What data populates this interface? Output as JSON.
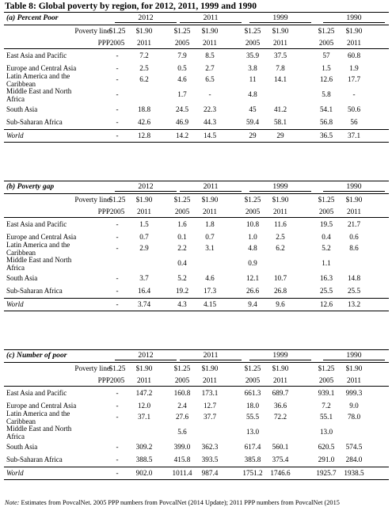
{
  "title": "Table 8: Global poverty by region, for 2012, 2011, 1999 and 1990",
  "years": [
    "2012",
    "2011",
    "1999",
    "1990"
  ],
  "poverty_line_label": "Poverty line",
  "ppp_label": "PPP",
  "poverty_lines": [
    "$1.25",
    "$1.90",
    "$1.25",
    "$1.90",
    "$1.25",
    "$1.90",
    "$1.25",
    "$1.90"
  ],
  "ppp_years": [
    "2005",
    "2011",
    "2005",
    "2011",
    "2005",
    "2011",
    "2005",
    "2011"
  ],
  "sections": [
    {
      "label": "(a) Percent Poor",
      "rows": [
        {
          "name": [
            "East Asia and Pacific"
          ],
          "values": [
            "-",
            "7.2",
            "7.9",
            "8.5",
            "35.9",
            "37.5",
            "57",
            "60.8"
          ]
        },
        {
          "name": [
            "Europe and Central Asia"
          ],
          "values": [
            "-",
            "2.5",
            "0.5",
            "2.7",
            "3.8",
            "7.8",
            "1.5",
            "1.9"
          ]
        },
        {
          "name": [
            "Latin America and the",
            "Caribbean"
          ],
          "values": [
            "-",
            "6.2",
            "4.6",
            "6.5",
            "11",
            "14.1",
            "12.6",
            "17.7"
          ]
        },
        {
          "name": [
            "Middle East and North",
            "Africa"
          ],
          "values": [
            "-",
            "",
            "1.7",
            "-",
            "4.8",
            "",
            "5.8",
            "-"
          ]
        },
        {
          "name": [
            "South Asia"
          ],
          "values": [
            "-",
            "18.8",
            "24.5",
            "22.3",
            "45",
            "41.2",
            "54.1",
            "50.6"
          ]
        },
        {
          "name": [
            "Sub-Saharan Africa"
          ],
          "values": [
            "-",
            "42.6",
            "46.9",
            "44.3",
            "59.4",
            "58.1",
            "56.8",
            "56"
          ]
        }
      ],
      "world": {
        "name": "World",
        "values": [
          "-",
          "12.8",
          "14.2",
          "14.5",
          "29",
          "29",
          "36.5",
          "37.1"
        ]
      }
    },
    {
      "label": "(b) Poverty gap",
      "rows": [
        {
          "name": [
            "East Asia and Pacific"
          ],
          "values": [
            "-",
            "1.5",
            "1.6",
            "1.8",
            "10.8",
            "11.6",
            "19.5",
            "21.7"
          ]
        },
        {
          "name": [
            "Europe and Central Asia"
          ],
          "values": [
            "-",
            "0.7",
            "0.1",
            "0.7",
            "1.0",
            "2.5",
            "0.4",
            "0.6"
          ]
        },
        {
          "name": [
            "Latin America and the",
            "Caribbean"
          ],
          "values": [
            "-",
            "2.9",
            "2.2",
            "3.1",
            "4.8",
            "6.2",
            "5.2",
            "8.6"
          ]
        },
        {
          "name": [
            "Middle East and North",
            "Africa"
          ],
          "values": [
            "",
            "",
            "0.4",
            "",
            "0.9",
            "",
            "1.1",
            ""
          ]
        },
        {
          "name": [
            "South Asia"
          ],
          "values": [
            "-",
            "3.7",
            "5.2",
            "4.6",
            "12.1",
            "10.7",
            "16.3",
            "14.8"
          ]
        },
        {
          "name": [
            "Sub-Saharan Africa"
          ],
          "values": [
            "-",
            "16.4",
            "19.2",
            "17.3",
            "26.6",
            "26.8",
            "25.5",
            "25.5"
          ]
        }
      ],
      "world": {
        "name": "World",
        "values": [
          "-",
          "3.74",
          "4.3",
          "4.15",
          "9.4",
          "9.6",
          "12.6",
          "13.2"
        ]
      }
    },
    {
      "label": "(c) Number of poor",
      "rows": [
        {
          "name": [
            "East Asia and Pacific"
          ],
          "values": [
            "-",
            "147.2",
            "160.8",
            "173.1",
            "661.3",
            "689.7",
            "939.1",
            "999.3"
          ]
        },
        {
          "name": [
            "Europe and Central Asia"
          ],
          "values": [
            "-",
            "12.0",
            "2.4",
            "12.7",
            "18.0",
            "36.6",
            "7.2",
            "9.0"
          ]
        },
        {
          "name": [
            "Latin America and the",
            "Caribbean"
          ],
          "values": [
            "-",
            "37.1",
            "27.6",
            "37.7",
            "55.5",
            "72.2",
            "55.1",
            "78.0"
          ]
        },
        {
          "name": [
            "Middle East and North",
            "Africa"
          ],
          "values": [
            "",
            "",
            "5.6",
            "",
            "13.0",
            "",
            "13.0",
            ""
          ]
        },
        {
          "name": [
            "South Asia"
          ],
          "values": [
            "-",
            "309.2",
            "399.0",
            "362.3",
            "617.4",
            "560.1",
            "620.5",
            "574.5"
          ]
        },
        {
          "name": [
            "Sub-Saharan Africa"
          ],
          "values": [
            "-",
            "388.5",
            "415.8",
            "393.5",
            "385.8",
            "375.4",
            "291.0",
            "284.0"
          ]
        }
      ],
      "world": {
        "name": "World",
        "values": [
          "-",
          "902.0",
          "1011.4",
          "987.4",
          "1751.2",
          "1746.6",
          "1925.7",
          "1938.5"
        ]
      }
    }
  ],
  "note_label": "Note:",
  "note_text": " Estimates from PovcalNet. 2005 PPP numbers from PovcalNet (2014 Update); 2011 PPP numbers from PovcalNet (2015"
}
